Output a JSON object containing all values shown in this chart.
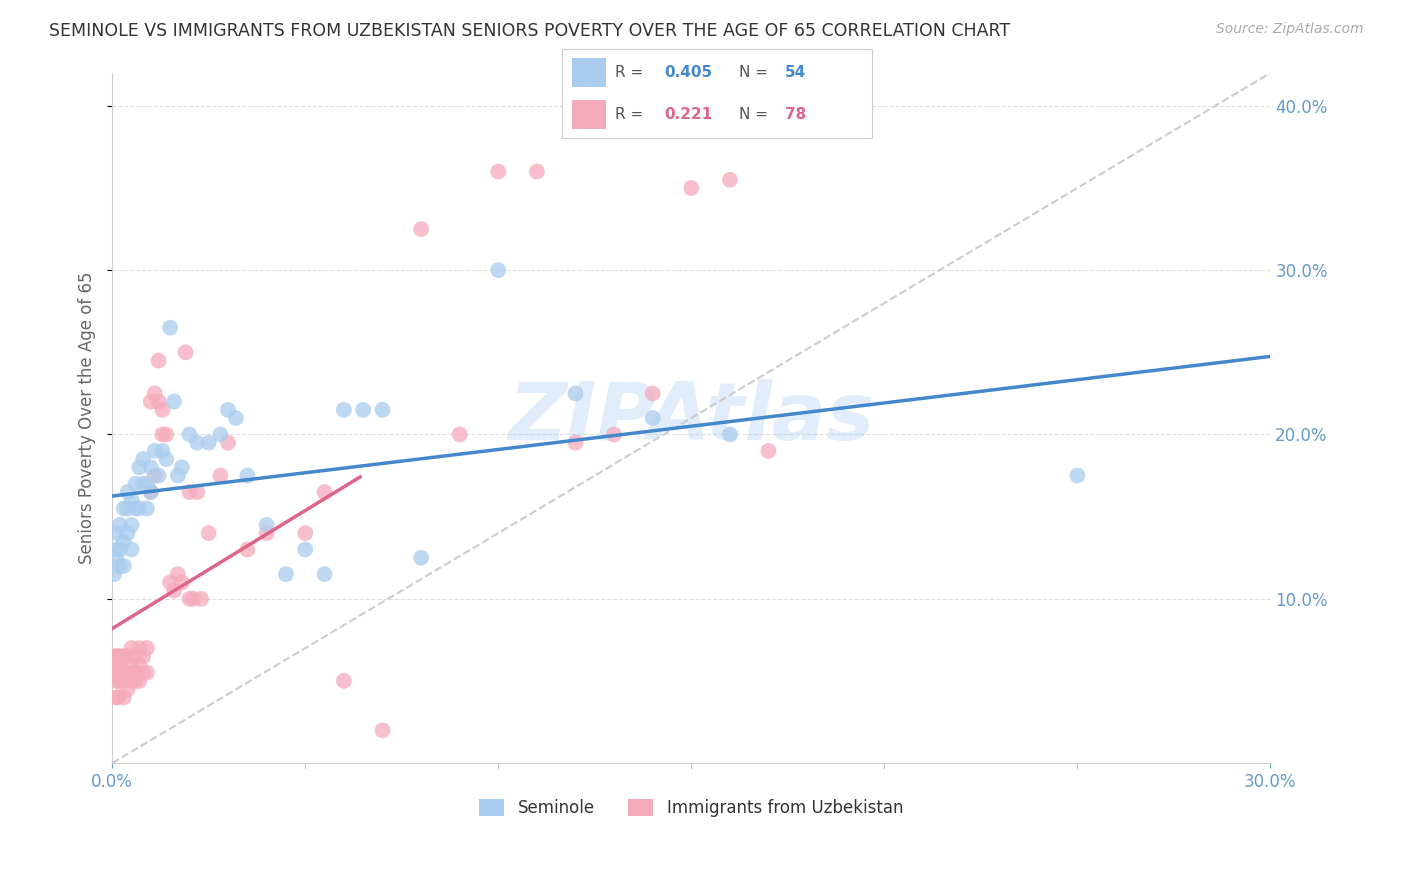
{
  "title": "SEMINOLE VS IMMIGRANTS FROM UZBEKISTAN SENIORS POVERTY OVER THE AGE OF 65 CORRELATION CHART",
  "source": "Source: ZipAtlas.com",
  "ylabel": "Seniors Poverty Over the Age of 65",
  "watermark": "ZIPAtlas",
  "x_min": 0.0,
  "x_max": 0.3,
  "y_min": 0.0,
  "y_max": 0.42,
  "seminole_R": 0.405,
  "seminole_N": 54,
  "uzbekistan_R": 0.221,
  "uzbekistan_N": 78,
  "seminole_color": "#aaccee",
  "uzbekistan_color": "#f5aabb",
  "seminole_line_color": "#4488cc",
  "uzbekistan_line_color": "#dd6688",
  "diagonal_line_color": "#cccccc",
  "background_color": "#ffffff",
  "grid_color": "#dddddd",
  "tick_color": "#6699cc",
  "title_color": "#333333",
  "seminole_scatter_x": [
    0.0005,
    0.001,
    0.001,
    0.001,
    0.002,
    0.002,
    0.002,
    0.003,
    0.003,
    0.003,
    0.004,
    0.004,
    0.004,
    0.005,
    0.005,
    0.005,
    0.006,
    0.006,
    0.007,
    0.007,
    0.008,
    0.008,
    0.009,
    0.009,
    0.01,
    0.01,
    0.011,
    0.012,
    0.013,
    0.014,
    0.015,
    0.016,
    0.017,
    0.018,
    0.02,
    0.022,
    0.025,
    0.028,
    0.03,
    0.032,
    0.035,
    0.04,
    0.045,
    0.05,
    0.055,
    0.06,
    0.065,
    0.07,
    0.08,
    0.1,
    0.12,
    0.14,
    0.16,
    0.25
  ],
  "seminole_scatter_y": [
    0.115,
    0.125,
    0.13,
    0.14,
    0.12,
    0.13,
    0.145,
    0.12,
    0.135,
    0.155,
    0.14,
    0.155,
    0.165,
    0.13,
    0.145,
    0.16,
    0.155,
    0.17,
    0.155,
    0.18,
    0.17,
    0.185,
    0.155,
    0.17,
    0.165,
    0.18,
    0.19,
    0.175,
    0.19,
    0.185,
    0.265,
    0.22,
    0.175,
    0.18,
    0.2,
    0.195,
    0.195,
    0.2,
    0.215,
    0.21,
    0.175,
    0.145,
    0.115,
    0.13,
    0.115,
    0.215,
    0.215,
    0.215,
    0.125,
    0.3,
    0.225,
    0.21,
    0.2,
    0.175
  ],
  "uzbekistan_scatter_x": [
    0.0003,
    0.0004,
    0.0005,
    0.0006,
    0.0007,
    0.0008,
    0.0009,
    0.001,
    0.001,
    0.001,
    0.0012,
    0.0013,
    0.0015,
    0.0015,
    0.0016,
    0.002,
    0.002,
    0.002,
    0.002,
    0.003,
    0.003,
    0.003,
    0.003,
    0.004,
    0.004,
    0.004,
    0.005,
    0.005,
    0.005,
    0.005,
    0.006,
    0.006,
    0.006,
    0.007,
    0.007,
    0.007,
    0.008,
    0.008,
    0.009,
    0.009,
    0.01,
    0.01,
    0.011,
    0.011,
    0.012,
    0.012,
    0.013,
    0.013,
    0.014,
    0.015,
    0.016,
    0.017,
    0.018,
    0.019,
    0.02,
    0.02,
    0.021,
    0.022,
    0.023,
    0.025,
    0.028,
    0.03,
    0.035,
    0.04,
    0.05,
    0.055,
    0.06,
    0.07,
    0.08,
    0.09,
    0.1,
    0.11,
    0.12,
    0.13,
    0.14,
    0.15,
    0.16,
    0.17
  ],
  "uzbekistan_scatter_y": [
    0.055,
    0.06,
    0.055,
    0.06,
    0.055,
    0.06,
    0.065,
    0.04,
    0.055,
    0.065,
    0.05,
    0.055,
    0.04,
    0.06,
    0.065,
    0.05,
    0.055,
    0.06,
    0.065,
    0.04,
    0.05,
    0.055,
    0.065,
    0.045,
    0.055,
    0.065,
    0.05,
    0.055,
    0.06,
    0.07,
    0.05,
    0.055,
    0.065,
    0.05,
    0.06,
    0.07,
    0.055,
    0.065,
    0.055,
    0.07,
    0.165,
    0.22,
    0.175,
    0.225,
    0.22,
    0.245,
    0.2,
    0.215,
    0.2,
    0.11,
    0.105,
    0.115,
    0.11,
    0.25,
    0.1,
    0.165,
    0.1,
    0.165,
    0.1,
    0.14,
    0.175,
    0.195,
    0.13,
    0.14,
    0.14,
    0.165,
    0.05,
    0.02,
    0.325,
    0.2,
    0.36,
    0.36,
    0.195,
    0.2,
    0.225,
    0.35,
    0.355,
    0.19
  ]
}
